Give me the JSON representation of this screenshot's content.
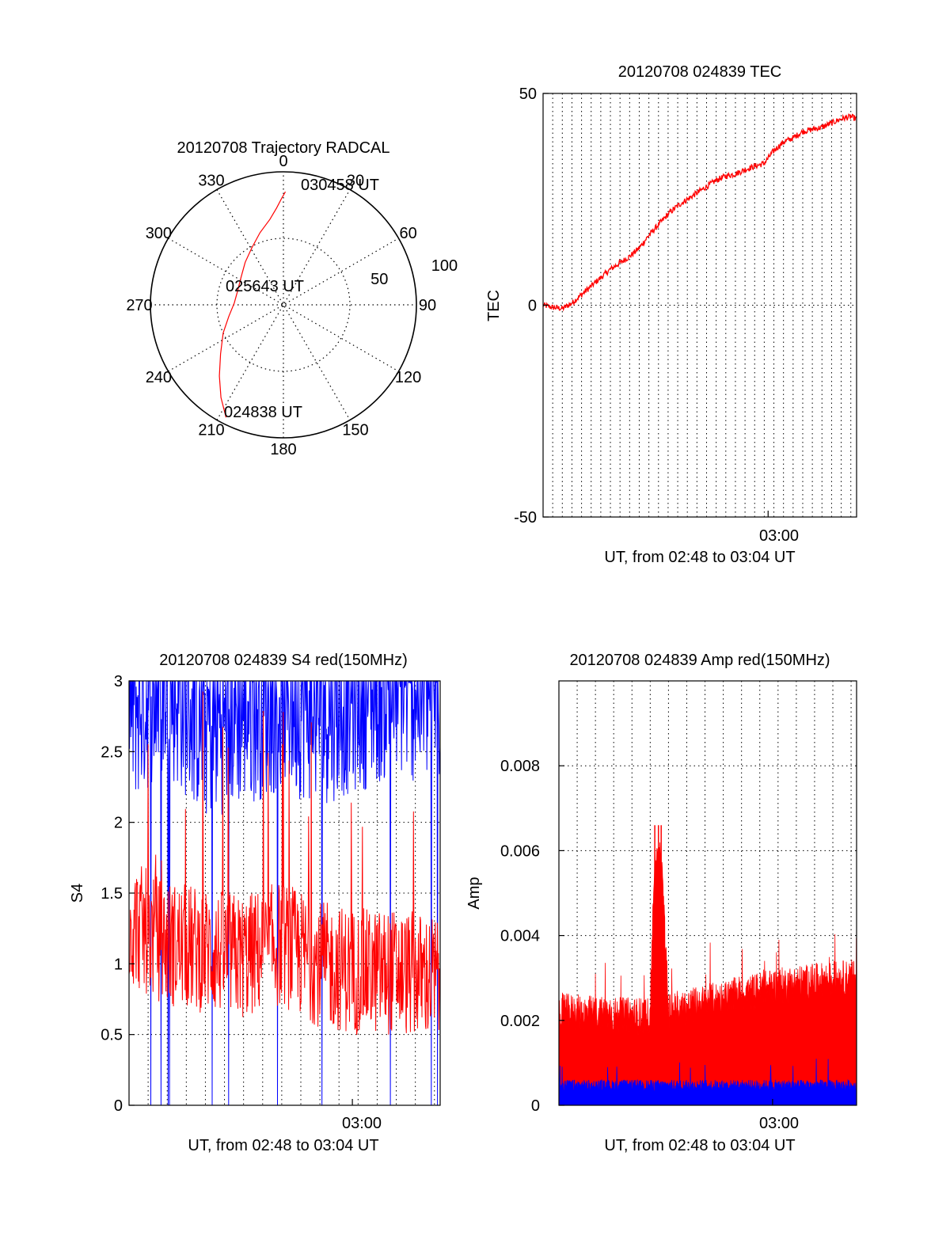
{
  "colors": {
    "red_series": "#ff0000",
    "blue_series": "#0000ff",
    "axis": "#000000"
  },
  "chart_data": [
    {
      "id": "trajectory",
      "type": "polar",
      "title": "20120708 Trajectory RADCAL",
      "angle_labels": [
        "0",
        "30",
        "60",
        "90",
        "120",
        "150",
        "180",
        "210",
        "240",
        "270",
        "300",
        "330"
      ],
      "radius_labels": [
        "50",
        "100"
      ],
      "radius_max": 100,
      "grid": true,
      "trajectory": {
        "color": "#ff0000",
        "azimuth": [
          207,
          214,
          222,
          232,
          245,
          258,
          272,
          287,
          303,
          318,
          331,
          342,
          351,
          356,
          359,
          361
        ],
        "elevation": [
          5,
          16,
          28,
          40,
          50,
          58,
          63,
          64,
          62,
          57,
          51,
          43,
          35,
          27,
          20,
          15
        ]
      },
      "annotations": [
        {
          "label": "030458 UT",
          "azimuth": 8,
          "elevation": 10
        },
        {
          "label": "025643 UT",
          "azimuth": 288,
          "elevation": 67
        },
        {
          "label": "024838 UT",
          "azimuth": 212,
          "elevation": 18
        }
      ]
    },
    {
      "id": "tec",
      "type": "line",
      "title": "20120708 024839 TEC",
      "xlabel": "UT, from 02:48 to 03:04 UT",
      "ylabel": "TEC",
      "xlim": [
        0,
        16.3
      ],
      "ylim": [
        -50,
        50
      ],
      "yticks": [
        "50",
        "0",
        "-50"
      ],
      "xtick_label": "03:00",
      "xtick_at": 11.7,
      "grid": true,
      "grid_x_step": 0.5,
      "series": [
        {
          "color": "#ff0000",
          "x": [
            0,
            0.5,
            1,
            1.5,
            2,
            2.5,
            3,
            3.5,
            4,
            4.5,
            5,
            5.5,
            6,
            6.5,
            7,
            7.5,
            8,
            8.5,
            9,
            9.5,
            10,
            10.5,
            11,
            11.5,
            12,
            12.5,
            13,
            13.5,
            14,
            14.5,
            15,
            15.5,
            16,
            16.3
          ],
          "y": [
            0,
            -0.5,
            -0.8,
            0.5,
            2.5,
            4.5,
            6.5,
            8.5,
            10,
            11.5,
            13.5,
            16.5,
            19,
            21.5,
            23.5,
            25,
            26.5,
            28,
            29.5,
            30.5,
            31,
            32,
            32.8,
            33.5,
            36.5,
            38.5,
            39.5,
            41,
            41.5,
            42,
            43,
            44,
            44.5,
            44
          ]
        }
      ]
    },
    {
      "id": "s4",
      "type": "line",
      "title": "20120708 024839 S4 red(150MHz)",
      "xlabel": "UT, from 02:48 to 03:04 UT",
      "ylabel": "S4",
      "xlim": [
        0,
        16.3
      ],
      "ylim": [
        0,
        3
      ],
      "yticks": [
        "0",
        "0.5",
        "1",
        "1.5",
        "2",
        "2.5",
        "3"
      ],
      "xtick_label": "03:00",
      "xtick_at": 11.7,
      "grid": true,
      "grid_x_step": 1,
      "series": [
        {
          "color": "#0000ff",
          "level_x": [
            0,
            2,
            4,
            6,
            8,
            10,
            12,
            14,
            16.3
          ],
          "level_y": [
            2.6,
            2.8,
            2.5,
            2.6,
            2.7,
            2.6,
            2.7,
            2.8,
            2.7
          ]
        },
        {
          "color": "#ff0000",
          "level_x": [
            0,
            2,
            4,
            6,
            8,
            10,
            12,
            14,
            16.3
          ],
          "level_y": [
            1.25,
            1.1,
            1.05,
            1.0,
            1.1,
            0.95,
            0.9,
            0.9,
            0.85
          ]
        }
      ]
    },
    {
      "id": "amp",
      "type": "line",
      "title": "20120708 024839 Amp red(150MHz)",
      "xlabel": "UT, from 02:48 to 03:04 UT",
      "ylabel": "Amp",
      "xlim": [
        0,
        16.3
      ],
      "ylim": [
        0,
        0.01
      ],
      "yticks": [
        "0",
        "0.002",
        "0.004",
        "0.006",
        "0.008"
      ],
      "ytick_values": [
        0,
        0.002,
        0.004,
        0.006,
        0.008
      ],
      "xtick_label": "03:00",
      "xtick_at": 11.7,
      "grid": true,
      "grid_x_step": 1,
      "series": [
        {
          "color": "#ff0000",
          "level_x": [
            0,
            3,
            5,
            5.2,
            5.6,
            6,
            8,
            10,
            12,
            14,
            16.3
          ],
          "level_y": [
            0.0022,
            0.0021,
            0.0021,
            0.0055,
            0.0058,
            0.0022,
            0.0024,
            0.0026,
            0.0028,
            0.0029,
            0.003
          ]
        },
        {
          "color": "#0000ff",
          "level_x": [
            0,
            16.3
          ],
          "level_y": [
            0.00045,
            0.00045
          ]
        }
      ]
    }
  ]
}
